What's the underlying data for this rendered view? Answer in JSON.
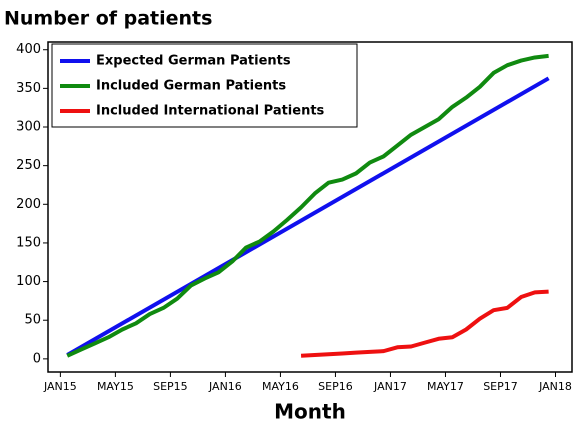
{
  "chart_data": {
    "type": "line",
    "title": "Number of patients",
    "x_label": "Month",
    "xlim": [
      -0.9,
      37.2
    ],
    "ylim": [
      -17,
      410
    ],
    "xticks": [
      {
        "value": 0,
        "label": "JAN15"
      },
      {
        "value": 4,
        "label": "MAY15"
      },
      {
        "value": 8,
        "label": "SEP15"
      },
      {
        "value": 12,
        "label": "JAN16"
      },
      {
        "value": 16,
        "label": "MAY16"
      },
      {
        "value": 20,
        "label": "SEP16"
      },
      {
        "value": 24,
        "label": "JAN17"
      },
      {
        "value": 28,
        "label": "MAY17"
      },
      {
        "value": 32,
        "label": "SEP17"
      },
      {
        "value": 36,
        "label": "JAN18"
      }
    ],
    "yticks": [
      0,
      50,
      100,
      150,
      200,
      250,
      300,
      350,
      400
    ],
    "grid": false,
    "legend": "upper left",
    "series": [
      {
        "name": "Expected German Patients",
        "color": "#1010ee",
        "x": [
          0.5,
          35.5
        ],
        "values": [
          5,
          363
        ]
      },
      {
        "name": "Included German Patients",
        "color": "#108a10",
        "x": [
          0.5,
          1.5,
          2.5,
          3.5,
          4.5,
          5.5,
          6.5,
          7.5,
          8.5,
          9.5,
          10.5,
          11.5,
          12.5,
          13.5,
          14.5,
          15.5,
          16.5,
          17.5,
          18.5,
          19.5,
          20.5,
          21.5,
          22.5,
          23.5,
          24.5,
          25.5,
          26.5,
          27.5,
          28.5,
          29.5,
          30.5,
          31.5,
          32.5,
          33.5,
          34.5,
          35.5
        ],
        "values": [
          4,
          12,
          20,
          28,
          38,
          46,
          58,
          66,
          78,
          95,
          104,
          112,
          126,
          144,
          152,
          165,
          180,
          196,
          214,
          228,
          232,
          240,
          254,
          262,
          276,
          290,
          300,
          310,
          326,
          338,
          352,
          370,
          380,
          386,
          390,
          392
        ]
      },
      {
        "name": "Included International Patients",
        "color": "#ee1010",
        "x": [
          17.5,
          18.5,
          19.5,
          20.5,
          21.5,
          22.5,
          23.5,
          24.5,
          25.5,
          26.5,
          27.5,
          28.5,
          29.5,
          30.5,
          31.5,
          32.5,
          33.5,
          34.5,
          35.5
        ],
        "values": [
          4,
          5,
          6,
          7,
          8,
          9,
          10,
          15,
          16,
          21,
          26,
          28,
          38,
          52,
          63,
          66,
          80,
          86,
          87
        ]
      }
    ]
  }
}
